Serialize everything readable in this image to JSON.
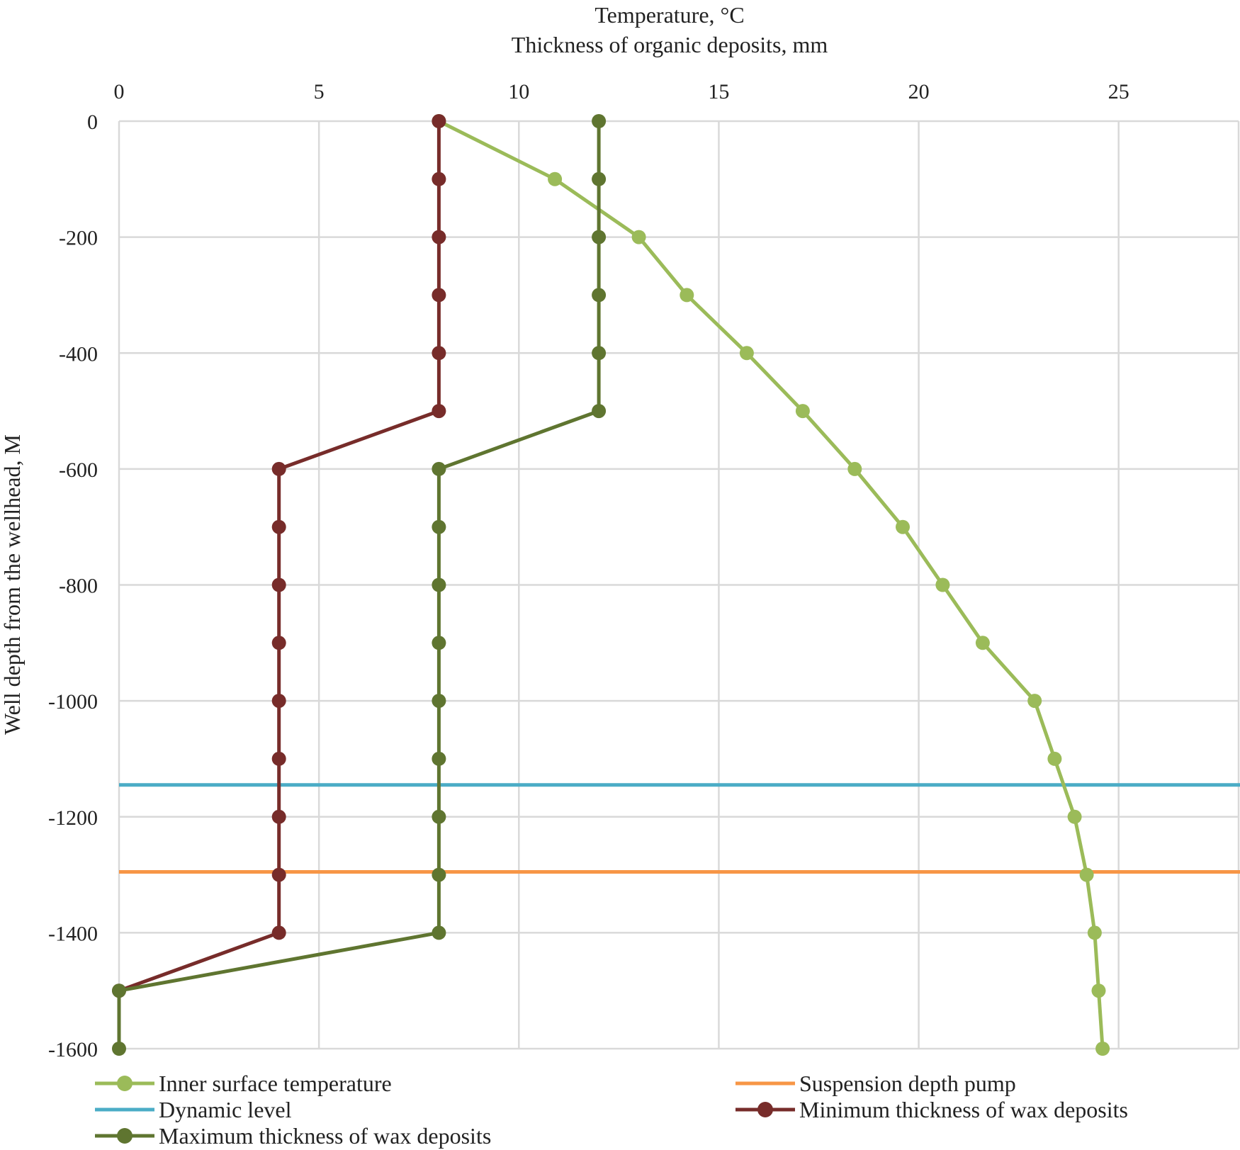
{
  "chart_data": {
    "type": "line",
    "title": "",
    "xlabel": [
      "Temperature, °C",
      "Thickness of organic deposits, mm"
    ],
    "ylabel": "Well depth from the wellhead, M",
    "xlim": [
      0,
      28
    ],
    "ylim": [
      -1600,
      0
    ],
    "x_ticks": [
      0,
      5,
      10,
      15,
      20,
      25
    ],
    "y_ticks": [
      0,
      -200,
      -400,
      -600,
      -800,
      -1000,
      -1200,
      -1400,
      -1600
    ],
    "grid": true,
    "legend_position": "bottom",
    "series": [
      {
        "name": "Inner surface temperature",
        "color": "#9bbb59",
        "marker": true,
        "points": [
          [
            8,
            0
          ],
          [
            10.9,
            -100
          ],
          [
            13,
            -200
          ],
          [
            14.2,
            -300
          ],
          [
            15.7,
            -400
          ],
          [
            17.1,
            -500
          ],
          [
            18.4,
            -600
          ],
          [
            19.6,
            -700
          ],
          [
            20.6,
            -800
          ],
          [
            21.6,
            -900
          ],
          [
            22.9,
            -1000
          ],
          [
            23.4,
            -1100
          ],
          [
            23.9,
            -1200
          ],
          [
            24.2,
            -1300
          ],
          [
            24.4,
            -1400
          ],
          [
            24.5,
            -1500
          ],
          [
            24.6,
            -1600
          ]
        ]
      },
      {
        "name": "Minimum thickness of wax deposits",
        "color": "#772c2a",
        "marker": true,
        "points": [
          [
            8,
            0
          ],
          [
            8,
            -100
          ],
          [
            8,
            -200
          ],
          [
            8,
            -300
          ],
          [
            8,
            -400
          ],
          [
            8,
            -500
          ],
          [
            4,
            -600
          ],
          [
            4,
            -700
          ],
          [
            4,
            -800
          ],
          [
            4,
            -900
          ],
          [
            4,
            -1000
          ],
          [
            4,
            -1100
          ],
          [
            4,
            -1200
          ],
          [
            4,
            -1300
          ],
          [
            4,
            -1400
          ],
          [
            0,
            -1500
          ]
        ]
      },
      {
        "name": "Maximum thickness of wax deposits",
        "color": "#5f7530",
        "marker": true,
        "points": [
          [
            12,
            0
          ],
          [
            12,
            -100
          ],
          [
            12,
            -200
          ],
          [
            12,
            -300
          ],
          [
            12,
            -400
          ],
          [
            12,
            -500
          ],
          [
            8,
            -600
          ],
          [
            8,
            -700
          ],
          [
            8,
            -800
          ],
          [
            8,
            -900
          ],
          [
            8,
            -1000
          ],
          [
            8,
            -1100
          ],
          [
            8,
            -1200
          ],
          [
            8,
            -1300
          ],
          [
            8,
            -1400
          ],
          [
            0,
            -1500
          ],
          [
            0,
            -1600
          ]
        ]
      },
      {
        "name": "Dynamic level",
        "color": "#4bacc6",
        "marker": false,
        "level": -1145
      },
      {
        "name": "Suspension depth pump",
        "color": "#f79646",
        "marker": false,
        "level": -1295
      }
    ],
    "legend": [
      {
        "label": "Inner surface temperature",
        "series": 0,
        "column": 0,
        "row": 0
      },
      {
        "label": "Suspension depth pump",
        "series": 4,
        "column": 1,
        "row": 0
      },
      {
        "label": "Dynamic level",
        "series": 3,
        "column": 0,
        "row": 1
      },
      {
        "label": "Minimum thickness of wax deposits",
        "series": 1,
        "column": 1,
        "row": 1
      },
      {
        "label": "Maximum thickness of wax deposits",
        "series": 2,
        "column": 0,
        "row": 2
      }
    ]
  }
}
